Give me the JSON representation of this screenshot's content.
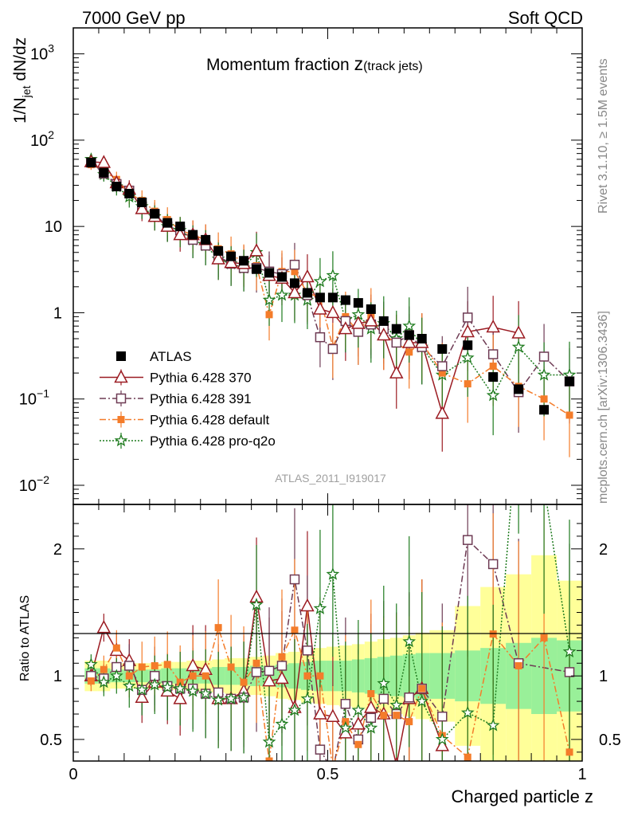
{
  "header": {
    "left": "7000 GeV pp",
    "right": "Soft QCD"
  },
  "side_labels": {
    "rivet": "Rivet 3.1.10, ≥ 1.5M events",
    "mcplots": "mcplots.cern.ch [arXiv:1306.3436]"
  },
  "watermark": "ATLAS_2011_I919017",
  "colors": {
    "atlas": "#000000",
    "p370": "#9b1b22",
    "p391": "#6e3b54",
    "pdefault": "#f47c2a",
    "pq2o": "#1e7b1e",
    "band_green": "#99f099",
    "band_yellow": "#ffff99"
  },
  "chart_data": [
    {
      "type": "scatter",
      "title": "Momentum fraction z(track jets)",
      "title_main": "Momentum fraction ",
      "title_z": "z",
      "title_sub": "(track jets)",
      "ylabel": "1/N_jet dN/dz",
      "ylabel_parts": [
        "1/N",
        "jet",
        " dN/dz"
      ],
      "yscale": "log",
      "xlim": [
        0,
        1
      ],
      "ylim": [
        0.006,
        2000
      ],
      "yticks": [
        {
          "v": 0.01,
          "base": "10",
          "exp": "−2"
        },
        {
          "v": 0.1,
          "base": "10",
          "exp": "−1"
        },
        {
          "v": 1,
          "base": "1",
          "exp": ""
        },
        {
          "v": 10,
          "base": "10",
          "exp": ""
        },
        {
          "v": 100,
          "base": "10",
          "exp": "2"
        },
        {
          "v": 1000,
          "base": "10",
          "exp": "3"
        }
      ],
      "legend_position": "lower-left",
      "series": [
        {
          "name": "ATLAS",
          "key": "atlas",
          "marker": "square-filled",
          "line": "none",
          "x": [
            0.035,
            0.06,
            0.085,
            0.11,
            0.135,
            0.16,
            0.185,
            0.21,
            0.235,
            0.26,
            0.285,
            0.31,
            0.335,
            0.36,
            0.385,
            0.41,
            0.435,
            0.46,
            0.485,
            0.51,
            0.535,
            0.56,
            0.585,
            0.61,
            0.635,
            0.66,
            0.685,
            0.725,
            0.775,
            0.825,
            0.875,
            0.925,
            0.975
          ],
          "y": [
            55,
            42,
            29,
            24,
            19,
            14,
            11,
            10,
            8,
            7,
            5.2,
            4.5,
            4.0,
            3.2,
            2.9,
            2.6,
            2.2,
            1.7,
            1.5,
            1.5,
            1.4,
            1.3,
            1.1,
            0.8,
            0.65,
            0.55,
            0.5,
            0.38,
            0.42,
            0.18,
            0.13,
            0.075,
            0.16
          ]
        },
        {
          "name": "Pythia 6.428 370",
          "key": "p370",
          "marker": "triangle-open",
          "line": "solid",
          "x": [
            0.035,
            0.06,
            0.085,
            0.11,
            0.135,
            0.16,
            0.185,
            0.21,
            0.235,
            0.26,
            0.285,
            0.31,
            0.335,
            0.36,
            0.385,
            0.41,
            0.435,
            0.46,
            0.485,
            0.51,
            0.535,
            0.56,
            0.585,
            0.61,
            0.635,
            0.66,
            0.685,
            0.725,
            0.775,
            0.825,
            0.875,
            0.925,
            0.975
          ],
          "y": [
            56,
            55,
            32,
            27,
            16,
            13,
            10,
            8,
            8,
            7,
            4.2,
            3.8,
            3.7,
            5.2,
            2.7,
            2.5,
            1.7,
            2.6,
            1.1,
            1.0,
            0.65,
            0.75,
            0.8,
            0.55,
            0.2,
            0.45,
            0.45,
            0.068,
            0.6,
            0.68,
            0.58,
            null,
            null
          ]
        },
        {
          "name": "Pythia 6.428 391",
          "key": "p391",
          "marker": "square-open",
          "line": "dashdot",
          "x": [
            0.035,
            0.06,
            0.085,
            0.11,
            0.135,
            0.16,
            0.185,
            0.21,
            0.235,
            0.26,
            0.285,
            0.31,
            0.335,
            0.36,
            0.385,
            0.41,
            0.435,
            0.46,
            0.485,
            0.51,
            0.535,
            0.56,
            0.585,
            0.61,
            0.635,
            0.66,
            0.685,
            0.725,
            0.775,
            0.825,
            0.875,
            0.925,
            0.975
          ],
          "y": [
            55,
            41,
            31,
            26,
            17,
            14,
            10,
            9,
            7,
            6,
            4.5,
            3.7,
            3.3,
            3.3,
            3.0,
            2.8,
            3.6,
            1.6,
            0.52,
            0.38,
            0.8,
            0.6,
            0.73,
            0.65,
            0.45,
            0.55,
            0.4,
            0.24,
            0.88,
            0.33,
            0.12,
            0.31,
            0.16
          ]
        },
        {
          "name": "Pythia 6.428 default",
          "key": "pdefault",
          "marker": "square-filled-small",
          "line": "dashdot",
          "x": [
            0.035,
            0.06,
            0.085,
            0.11,
            0.135,
            0.16,
            0.185,
            0.21,
            0.235,
            0.26,
            0.285,
            0.31,
            0.335,
            0.36,
            0.385,
            0.41,
            0.435,
            0.46,
            0.485,
            0.51,
            0.535,
            0.56,
            0.585,
            0.61,
            0.635,
            0.66,
            0.685,
            0.725,
            0.775,
            0.825,
            0.875,
            0.925,
            0.975
          ],
          "y": [
            52,
            44,
            35,
            24,
            20,
            15,
            12,
            9,
            8,
            7,
            5.5,
            4.8,
            3.8,
            3.5,
            0.95,
            3.0,
            3.0,
            1.7,
            1.5,
            0.4,
            0.9,
            0.6,
            0.95,
            0.55,
            0.45,
            0.35,
            0.45,
            0.2,
            0.15,
            0.24,
            0.14,
            0.1,
            0.065
          ]
        },
        {
          "name": "Pythia 6.428 pro-q2o",
          "key": "pq2o",
          "marker": "star-open",
          "line": "dotted",
          "x": [
            0.035,
            0.06,
            0.085,
            0.11,
            0.135,
            0.16,
            0.185,
            0.21,
            0.235,
            0.26,
            0.285,
            0.31,
            0.335,
            0.36,
            0.385,
            0.41,
            0.435,
            0.46,
            0.485,
            0.51,
            0.535,
            0.56,
            0.585,
            0.61,
            0.635,
            0.66,
            0.685,
            0.725,
            0.775,
            0.825,
            0.875,
            0.925,
            0.975
          ],
          "y": [
            60,
            40,
            29,
            22,
            17,
            13,
            10,
            9,
            7,
            6,
            4.2,
            3.7,
            3.3,
            5.0,
            1.4,
            1.6,
            1.6,
            1.4,
            2.3,
            2.7,
            0.82,
            0.95,
            0.65,
            0.75,
            0.5,
            0.7,
            0.4,
            0.19,
            0.3,
            0.11,
            0.4,
            0.19,
            0.19
          ]
        }
      ]
    },
    {
      "type": "line",
      "xlabel": "Charged particle z",
      "ylabel": "Ratio to ATLAS",
      "xlim": [
        0,
        1
      ],
      "ylim": [
        0.33,
        2.35
      ],
      "xticks": [
        {
          "v": 0,
          "label": "0"
        },
        {
          "v": 0.5,
          "label": "0.5"
        },
        {
          "v": 1,
          "label": "1"
        }
      ],
      "yticks": [
        {
          "v": 0.5,
          "label": "0.5"
        },
        {
          "v": 1,
          "label": "1"
        },
        {
          "v": 2,
          "label": "2"
        }
      ],
      "bands": {
        "edges": [
          0.0225,
          0.0475,
          0.0725,
          0.0975,
          0.1225,
          0.1475,
          0.1725,
          0.1975,
          0.2225,
          0.2475,
          0.2725,
          0.2975,
          0.3225,
          0.3475,
          0.3725,
          0.3975,
          0.4225,
          0.4475,
          0.4725,
          0.4975,
          0.5225,
          0.5475,
          0.5725,
          0.5975,
          0.6225,
          0.6475,
          0.6725,
          0.7,
          0.75,
          0.8,
          0.85,
          0.9,
          0.95,
          1.0
        ],
        "green": [
          0.06,
          0.06,
          0.05,
          0.05,
          0.05,
          0.05,
          0.06,
          0.06,
          0.06,
          0.06,
          0.07,
          0.07,
          0.07,
          0.08,
          0.08,
          0.09,
          0.1,
          0.11,
          0.12,
          0.12,
          0.12,
          0.13,
          0.14,
          0.15,
          0.16,
          0.17,
          0.18,
          0.18,
          0.2,
          0.22,
          0.26,
          0.3,
          0.28
        ],
        "yellow": [
          0.12,
          0.12,
          0.1,
          0.1,
          0.1,
          0.1,
          0.11,
          0.11,
          0.12,
          0.12,
          0.13,
          0.14,
          0.14,
          0.15,
          0.16,
          0.18,
          0.19,
          0.21,
          0.22,
          0.23,
          0.24,
          0.25,
          0.27,
          0.29,
          0.3,
          0.32,
          0.34,
          0.36,
          0.55,
          0.7,
          0.8,
          0.95,
          0.75
        ]
      },
      "series": [
        {
          "key": "p370",
          "x": [
            0.035,
            0.06,
            0.085,
            0.11,
            0.135,
            0.16,
            0.185,
            0.21,
            0.235,
            0.26,
            0.285,
            0.31,
            0.335,
            0.36,
            0.385,
            0.41,
            0.435,
            0.46,
            0.485,
            0.51,
            0.535,
            0.56,
            0.585,
            0.61,
            0.635,
            0.66,
            0.685,
            0.725
          ],
          "y": [
            1.0,
            1.38,
            1.2,
            1.12,
            0.83,
            0.95,
            0.88,
            0.82,
            1.08,
            1.05,
            0.82,
            0.82,
            0.88,
            1.62,
            0.96,
            0.98,
            0.75,
            1.55,
            0.7,
            0.68,
            0.55,
            0.62,
            0.75,
            0.7,
            0.3,
            0.82,
            0.9,
            0.45
          ]
        },
        {
          "key": "p391",
          "x": [
            0.035,
            0.06,
            0.085,
            0.11,
            0.135,
            0.16,
            0.185,
            0.21,
            0.235,
            0.26,
            0.285,
            0.31,
            0.335,
            0.36,
            0.385,
            0.41,
            0.435,
            0.46,
            0.485,
            0.51,
            0.535,
            0.56,
            0.585,
            0.61,
            0.635,
            0.66,
            0.685,
            0.725,
            0.775,
            0.825,
            0.875,
            0.975
          ],
          "y": [
            1.0,
            0.98,
            1.07,
            1.08,
            0.89,
            1.0,
            0.92,
            0.9,
            0.9,
            0.86,
            0.87,
            0.82,
            0.83,
            1.03,
            1.04,
            1.08,
            1.76,
            1.2,
            0.42,
            0.25,
            0.78,
            0.5,
            0.67,
            0.82,
            0.7,
            0.83,
            0.9,
            0.68,
            2.07,
            1.88,
            1.1,
            1.03
          ]
        },
        {
          "key": "pdefault",
          "x": [
            0.035,
            0.06,
            0.085,
            0.11,
            0.135,
            0.16,
            0.185,
            0.21,
            0.235,
            0.26,
            0.285,
            0.31,
            0.335,
            0.36,
            0.385,
            0.41,
            0.435,
            0.46,
            0.485,
            0.51,
            0.535,
            0.56,
            0.585,
            0.61,
            0.635,
            0.66,
            0.685,
            0.725,
            0.775,
            0.825,
            0.875,
            0.925,
            0.975
          ],
          "y": [
            0.96,
            1.05,
            1.22,
            1.0,
            1.07,
            1.08,
            1.09,
            0.95,
            1.0,
            1.0,
            1.38,
            1.07,
            0.95,
            1.1,
            0.33,
            1.15,
            1.36,
            1.0,
            1.0,
            0.27,
            0.64,
            0.46,
            0.86,
            0.69,
            0.69,
            0.64,
            0.9,
            0.53,
            0.36,
            1.33,
            1.08,
            1.3,
            0.4
          ]
        },
        {
          "key": "pq2o",
          "x": [
            0.035,
            0.06,
            0.085,
            0.11,
            0.135,
            0.16,
            0.185,
            0.21,
            0.235,
            0.26,
            0.285,
            0.31,
            0.335,
            0.36,
            0.385,
            0.41,
            0.435,
            0.46,
            0.485,
            0.51,
            0.535,
            0.56,
            0.585,
            0.61,
            0.635,
            0.66,
            0.685,
            0.725,
            0.775,
            0.825,
            0.875,
            0.925,
            0.975
          ],
          "y": [
            1.09,
            0.95,
            1.0,
            0.92,
            0.89,
            0.93,
            0.91,
            0.9,
            0.88,
            0.86,
            0.81,
            0.82,
            0.83,
            1.56,
            0.48,
            0.62,
            0.73,
            0.82,
            1.53,
            1.8,
            0.59,
            0.73,
            0.59,
            0.94,
            0.77,
            1.27,
            0.8,
            0.5,
            0.71,
            0.61,
            3.1,
            2.5,
            1.19
          ]
        }
      ]
    }
  ]
}
